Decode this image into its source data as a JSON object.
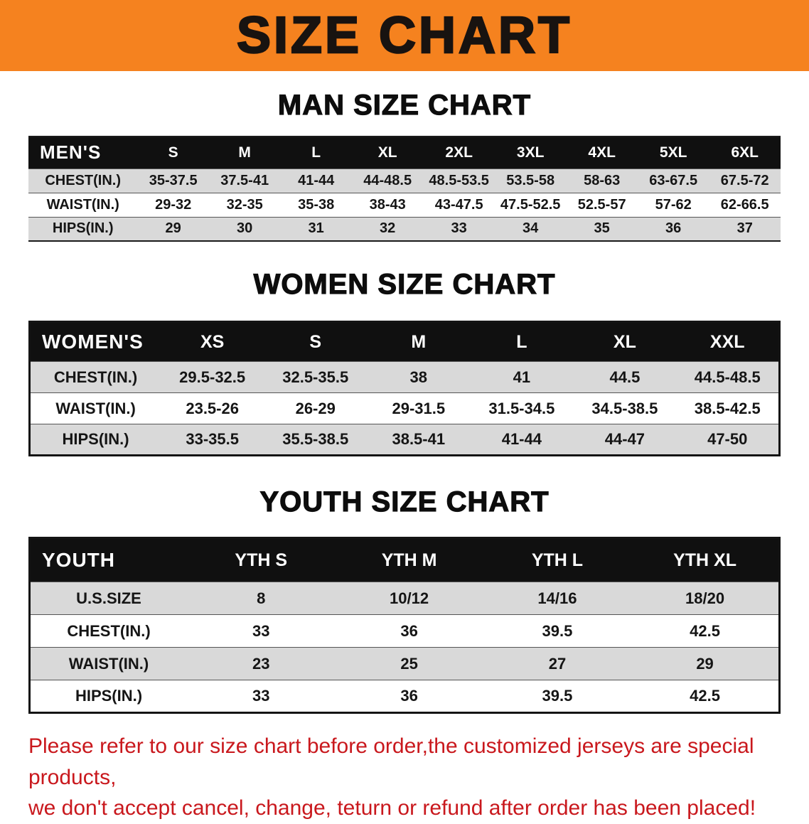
{
  "banner": {
    "title": "SIZE CHART"
  },
  "colors": {
    "banner_bg": "#F5821F",
    "banner_text": "#181310",
    "header_bg": "#101010",
    "row_alt": "#D9D9D9",
    "disclaimer": "#C9181D"
  },
  "sections": [
    {
      "heading": "MAN SIZE CHART",
      "table": {
        "header": [
          "MEN'S",
          "S",
          "M",
          "L",
          "XL",
          "2XL",
          "3XL",
          "4XL",
          "5XL",
          "6XL"
        ],
        "rows": [
          [
            "CHEST(IN.)",
            "35-37.5",
            "37.5-41",
            "41-44",
            "44-48.5",
            "48.5-53.5",
            "53.5-58",
            "58-63",
            "63-67.5",
            "67.5-72"
          ],
          [
            "WAIST(IN.)",
            "29-32",
            "32-35",
            "35-38",
            "38-43",
            "43-47.5",
            "47.5-52.5",
            "52.5-57",
            "57-62",
            "62-66.5"
          ],
          [
            "HIPS(IN.)",
            "29",
            "30",
            "31",
            "32",
            "33",
            "34",
            "35",
            "36",
            "37"
          ]
        ]
      }
    },
    {
      "heading": "WOMEN SIZE CHART",
      "table": {
        "header": [
          "WOMEN'S",
          "XS",
          "S",
          "M",
          "L",
          "XL",
          "XXL"
        ],
        "rows": [
          [
            "CHEST(IN.)",
            "29.5-32.5",
            "32.5-35.5",
            "38",
            "41",
            "44.5",
            "44.5-48.5"
          ],
          [
            "WAIST(IN.)",
            "23.5-26",
            "26-29",
            "29-31.5",
            "31.5-34.5",
            "34.5-38.5",
            "38.5-42.5"
          ],
          [
            "HIPS(IN.)",
            "33-35.5",
            "35.5-38.5",
            "38.5-41",
            "41-44",
            "44-47",
            "47-50"
          ]
        ]
      }
    },
    {
      "heading": "YOUTH SIZE CHART",
      "table": {
        "header": [
          "YOUTH",
          "YTH S",
          "YTH M",
          "YTH L",
          "YTH XL"
        ],
        "rows": [
          [
            "U.S.SIZE",
            "8",
            "10/12",
            "14/16",
            "18/20"
          ],
          [
            "CHEST(IN.)",
            "33",
            "36",
            "39.5",
            "42.5"
          ],
          [
            "WAIST(IN.)",
            "23",
            "25",
            "27",
            "29"
          ],
          [
            "HIPS(IN.)",
            "33",
            "36",
            "39.5",
            "42.5"
          ]
        ]
      }
    }
  ],
  "disclaimer": {
    "lines": [
      "Please refer to our size chart before order,the customized jerseys are special products,",
      "we don't accept cancel, change, teturn or refund after order has been placed!"
    ]
  }
}
